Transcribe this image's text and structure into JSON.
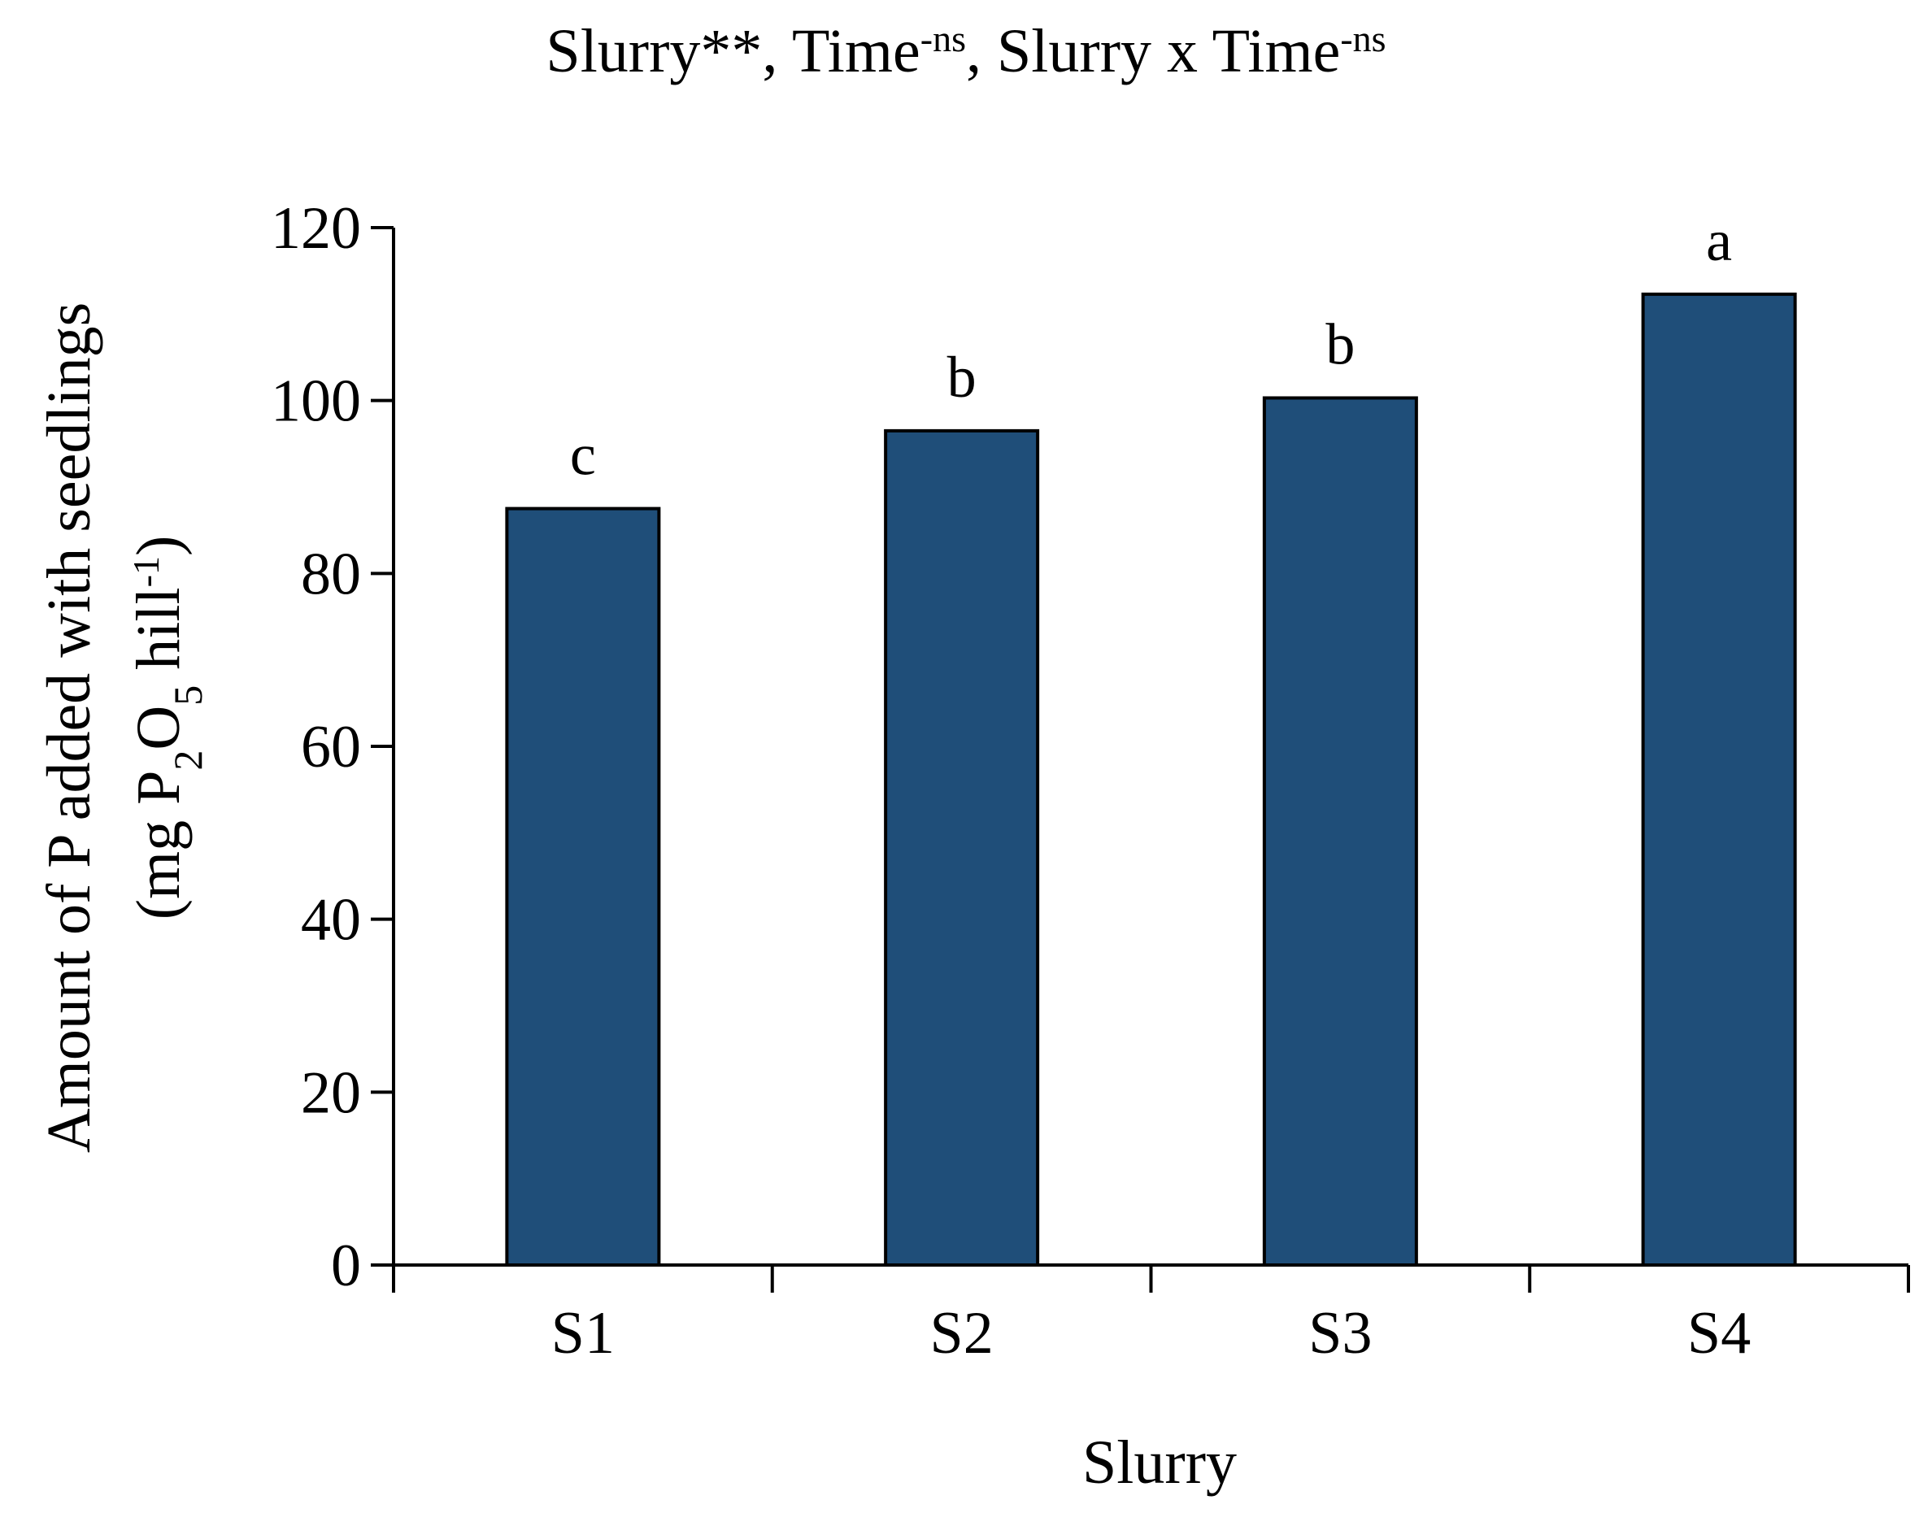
{
  "chart_data": {
    "type": "bar",
    "title": {
      "parts": [
        {
          "text": "Slurry**, Time",
          "sup": false
        },
        {
          "text": "-ns",
          "sup": true
        },
        {
          "text": ", Slurry x Time",
          "sup": false
        },
        {
          "text": "-ns",
          "sup": true
        }
      ]
    },
    "xlabel": "Slurry",
    "ylabel": {
      "line1": "Amount of P added with seedlings",
      "line2_parts": [
        {
          "text": "(mg P",
          "shift": "none"
        },
        {
          "text": "2",
          "shift": "sub"
        },
        {
          "text": "O",
          "shift": "none"
        },
        {
          "text": "5",
          "shift": "sub"
        },
        {
          "text": " hill",
          "shift": "none"
        },
        {
          "text": "-1",
          "shift": "sup"
        },
        {
          "text": ")",
          "shift": "none"
        }
      ]
    },
    "categories": [
      "S1",
      "S2",
      "S3",
      "S4"
    ],
    "values": [
      87.5,
      96.5,
      100.3,
      112.3
    ],
    "significance_letters": [
      "c",
      "b",
      "b",
      "a"
    ],
    "ylim": [
      0,
      120
    ],
    "yticks": [
      0,
      20,
      40,
      60,
      80,
      100,
      120
    ],
    "grid": false,
    "legend": false,
    "colors": {
      "bar": "#1f4e79",
      "bar_edge": "#000000",
      "axis": "#000000"
    }
  }
}
